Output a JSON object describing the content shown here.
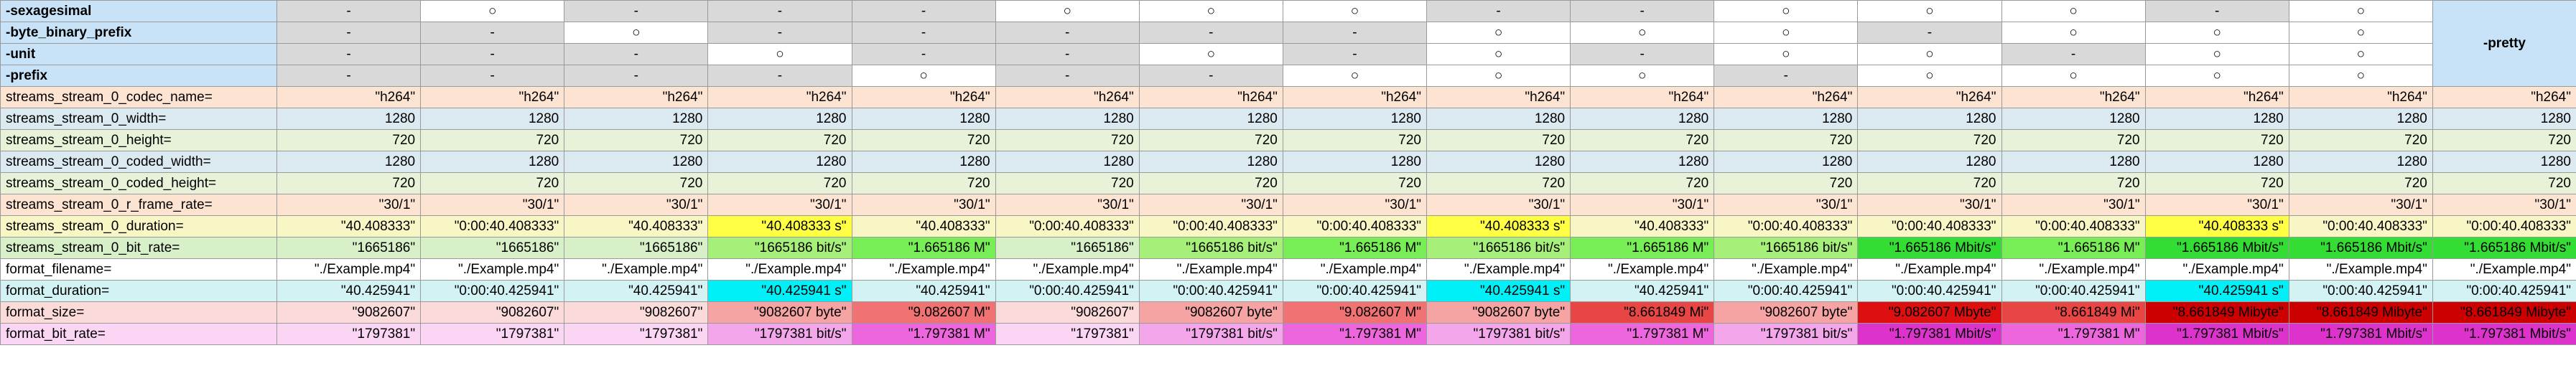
{
  "options_table": {
    "rows": [
      {
        "label": "-sexagesimal",
        "flags": [
          "-",
          "○",
          "-",
          "-",
          "-",
          "○",
          "○",
          "○",
          "-",
          "-",
          "○",
          "○",
          "○",
          "-",
          "○"
        ]
      },
      {
        "label": "-byte_binary_prefix",
        "flags": [
          "-",
          "-",
          "○",
          "-",
          "-",
          "-",
          "-",
          "-",
          "○",
          "○",
          "○",
          "-",
          "○",
          "○",
          "○"
        ]
      },
      {
        "label": "-unit",
        "flags": [
          "-",
          "-",
          "-",
          "○",
          "-",
          "-",
          "○",
          "-",
          "○",
          "-",
          "○",
          "○",
          "-",
          "○",
          "○"
        ]
      },
      {
        "label": "-prefix",
        "flags": [
          "-",
          "-",
          "-",
          "-",
          "○",
          "-",
          "-",
          "○",
          "○",
          "○",
          "-",
          "○",
          "○",
          "○",
          "○"
        ]
      }
    ],
    "pretty_label": "-pretty"
  },
  "fields": [
    {
      "name": "streams_stream_0_codec_name=",
      "row_color": "#fde3d2",
      "values": [
        "\"h264\"",
        "\"h264\"",
        "\"h264\"",
        "\"h264\"",
        "\"h264\"",
        "\"h264\"",
        "\"h264\"",
        "\"h264\"",
        "\"h264\"",
        "\"h264\"",
        "\"h264\"",
        "\"h264\"",
        "\"h264\"",
        "\"h264\"",
        "\"h264\"",
        "\"h264\""
      ],
      "colors": []
    },
    {
      "name": "streams_stream_0_width=",
      "row_color": "#dbeaf0",
      "values": [
        "1280",
        "1280",
        "1280",
        "1280",
        "1280",
        "1280",
        "1280",
        "1280",
        "1280",
        "1280",
        "1280",
        "1280",
        "1280",
        "1280",
        "1280",
        "1280"
      ],
      "colors": []
    },
    {
      "name": "streams_stream_0_height=",
      "row_color": "#e8f2d8",
      "values": [
        "720",
        "720",
        "720",
        "720",
        "720",
        "720",
        "720",
        "720",
        "720",
        "720",
        "720",
        "720",
        "720",
        "720",
        "720",
        "720"
      ],
      "colors": []
    },
    {
      "name": "streams_stream_0_coded_width=",
      "row_color": "#dbeaf0",
      "values": [
        "1280",
        "1280",
        "1280",
        "1280",
        "1280",
        "1280",
        "1280",
        "1280",
        "1280",
        "1280",
        "1280",
        "1280",
        "1280",
        "1280",
        "1280",
        "1280"
      ],
      "colors": []
    },
    {
      "name": "streams_stream_0_coded_height=",
      "row_color": "#e8f2d8",
      "values": [
        "720",
        "720",
        "720",
        "720",
        "720",
        "720",
        "720",
        "720",
        "720",
        "720",
        "720",
        "720",
        "720",
        "720",
        "720",
        "720"
      ],
      "colors": []
    },
    {
      "name": "streams_stream_0_r_frame_rate=",
      "row_color": "#fde3d2",
      "values": [
        "\"30/1\"",
        "\"30/1\"",
        "\"30/1\"",
        "\"30/1\"",
        "\"30/1\"",
        "\"30/1\"",
        "\"30/1\"",
        "\"30/1\"",
        "\"30/1\"",
        "\"30/1\"",
        "\"30/1\"",
        "\"30/1\"",
        "\"30/1\"",
        "\"30/1\"",
        "\"30/1\"",
        "\"30/1\""
      ],
      "colors": []
    },
    {
      "name": "streams_stream_0_duration=",
      "row_color": "#f8f6c4",
      "values": [
        "\"40.408333\"",
        "\"0:00:40.408333\"",
        "\"40.408333\"",
        "\"40.408333 s\"",
        "\"40.408333\"",
        "\"0:00:40.408333\"",
        "\"0:00:40.408333\"",
        "\"0:00:40.408333\"",
        "\"40.408333 s\"",
        "\"40.408333\"",
        "\"0:00:40.408333\"",
        "\"0:00:40.408333\"",
        "\"0:00:40.408333\"",
        "\"40.408333 s\"",
        "\"0:00:40.408333\"",
        "\"0:00:40.408333\""
      ],
      "colors": [
        "",
        "",
        "",
        "#ffff44",
        "",
        "",
        "",
        "",
        "#ffff44",
        "",
        "",
        "",
        "",
        "#ffff44",
        "",
        ""
      ]
    },
    {
      "name": "streams_stream_0_bit_rate=",
      "row_color": "#d8f0c8",
      "values": [
        "\"1665186\"",
        "\"1665186\"",
        "\"1665186\"",
        "\"1665186 bit/s\"",
        "\"1.665186 M\"",
        "\"1665186\"",
        "\"1665186 bit/s\"",
        "\"1.665186 M\"",
        "\"1665186 bit/s\"",
        "\"1.665186 M\"",
        "\"1665186 bit/s\"",
        "\"1.665186 Mbit/s\"",
        "\"1.665186 M\"",
        "\"1.665186 Mbit/s\"",
        "\"1.665186 Mbit/s\"",
        "\"1.665186 Mbit/s\""
      ],
      "colors": [
        "",
        "",
        "",
        "#a6f07a",
        "#77ee55",
        "",
        "#a6f07a",
        "#77ee55",
        "#a6f07a",
        "#77ee55",
        "#a6f07a",
        "#33dd33",
        "#77ee55",
        "#33dd33",
        "#33dd33",
        "#33dd33"
      ]
    },
    {
      "name": "format_filename=",
      "row_color": "#ffffff",
      "values": [
        "\"./Example.mp4\"",
        "\"./Example.mp4\"",
        "\"./Example.mp4\"",
        "\"./Example.mp4\"",
        "\"./Example.mp4\"",
        "\"./Example.mp4\"",
        "\"./Example.mp4\"",
        "\"./Example.mp4\"",
        "\"./Example.mp4\"",
        "\"./Example.mp4\"",
        "\"./Example.mp4\"",
        "\"./Example.mp4\"",
        "\"./Example.mp4\"",
        "\"./Example.mp4\"",
        "\"./Example.mp4\"",
        "\"./Example.mp4\""
      ],
      "colors": []
    },
    {
      "name": "format_duration=",
      "row_color": "#d2f2f4",
      "values": [
        "\"40.425941\"",
        "\"0:00:40.425941\"",
        "\"40.425941\"",
        "\"40.425941 s\"",
        "\"40.425941\"",
        "\"0:00:40.425941\"",
        "\"0:00:40.425941\"",
        "\"0:00:40.425941\"",
        "\"40.425941 s\"",
        "\"40.425941\"",
        "\"0:00:40.425941\"",
        "\"0:00:40.425941\"",
        "\"0:00:40.425941\"",
        "\"40.425941 s\"",
        "\"0:00:40.425941\"",
        "\"0:00:40.425941\""
      ],
      "colors": [
        "",
        "",
        "",
        "#00f0f8",
        "",
        "",
        "",
        "",
        "#00f0f8",
        "",
        "",
        "",
        "",
        "#00f0f8",
        "",
        ""
      ]
    },
    {
      "name": "format_size=",
      "row_color": "#fbdada",
      "values": [
        "\"9082607\"",
        "\"9082607\"",
        "\"9082607\"",
        "\"9082607 byte\"",
        "\"9.082607 M\"",
        "\"9082607\"",
        "\"9082607 byte\"",
        "\"9.082607 M\"",
        "\"9082607 byte\"",
        "\"8.661849 Mi\"",
        "\"9082607 byte\"",
        "\"9.082607 Mbyte\"",
        "\"8.661849 Mi\"",
        "\"8.661849 Mibyte\"",
        "\"8.661849 Mibyte\"",
        "\"8.661849 Mibyte\""
      ],
      "colors": [
        "",
        "",
        "",
        "#f5a3a3",
        "#f07272",
        "",
        "#f5a3a3",
        "#f07272",
        "#f5a3a3",
        "#e84545",
        "#f5a3a3",
        "#dd0f0f",
        "#e84545",
        "#cc0000",
        "#cc0000",
        "#cc0000"
      ]
    },
    {
      "name": "format_bit_rate=",
      "row_color": "#fbd6f4",
      "values": [
        "\"1797381\"",
        "\"1797381\"",
        "\"1797381\"",
        "\"1797381 bit/s\"",
        "\"1.797381 M\"",
        "\"1797381\"",
        "\"1797381 bit/s\"",
        "\"1.797381 M\"",
        "\"1797381 bit/s\"",
        "\"1.797381 M\"",
        "\"1797381 bit/s\"",
        "\"1.797381 Mbit/s\"",
        "\"1.797381 M\"",
        "\"1.797381 Mbit/s\"",
        "\"1.797381 Mbit/s\"",
        "\"1.797381 Mbit/s\""
      ],
      "colors": [
        "",
        "",
        "",
        "#f3a6ea",
        "#ee66dd",
        "",
        "#f3a6ea",
        "#ee66dd",
        "#f3a6ea",
        "#ee66dd",
        "#f3a6ea",
        "#dd33cc",
        "#ee66dd",
        "#dd33cc",
        "#dd33cc",
        "#dd33cc"
      ]
    }
  ]
}
